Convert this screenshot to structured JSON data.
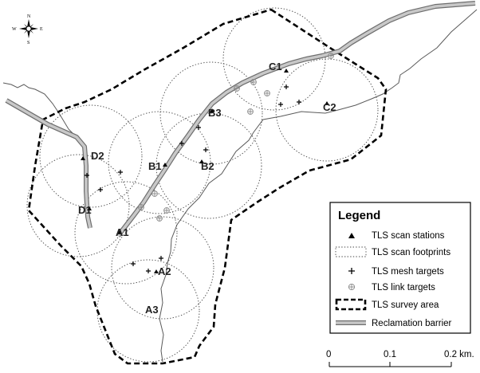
{
  "stations": [
    {
      "label": "A1"
    },
    {
      "label": "A2"
    },
    {
      "label": "A3"
    },
    {
      "label": "B1"
    },
    {
      "label": "B2"
    },
    {
      "label": "B3"
    },
    {
      "label": "C1"
    },
    {
      "label": "C2"
    },
    {
      "label": "D1"
    },
    {
      "label": "D2"
    }
  ],
  "legend": {
    "title": "Legend",
    "items": [
      {
        "symbol": "station-triangle",
        "label": "TLS scan stations"
      },
      {
        "symbol": "footprint-dotted",
        "label": "TLS scan footprints"
      },
      {
        "symbol": "mesh-plus",
        "label": "TLS mesh targets"
      },
      {
        "symbol": "link-target",
        "label": "TLS link targets"
      },
      {
        "symbol": "survey-area-dashed",
        "label": "TLS survey area"
      },
      {
        "symbol": "barrier-double-line",
        "label": "Reclamation barrier"
      }
    ]
  },
  "scale": {
    "ticks": [
      "0",
      "0.1",
      "0.2 km."
    ]
  },
  "compass": {
    "north": "N",
    "south": "S",
    "east": "E",
    "west": "W"
  },
  "colors": {
    "barrier_fill": "#c8c8c8",
    "barrier_edge": "#6e6e6e",
    "river": "#5a5a5a",
    "ink": "#000000"
  }
}
